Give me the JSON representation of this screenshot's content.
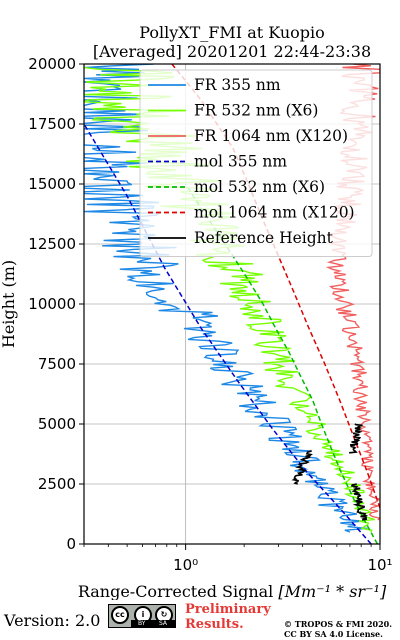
{
  "chart_data": {
    "type": "line",
    "title_lines": [
      "PollyXT_FMI at Kuopio",
      "[Averaged] 20201201 22:44-23:38"
    ],
    "xlabel_prefix": "Range-Corrected Signal ",
    "xlabel_unit": "[Mm⁻¹ * sr⁻¹]",
    "ylabel": "Height (m)",
    "xscale": "log",
    "xlim": [
      0.3,
      10
    ],
    "ylim": [
      0,
      20000
    ],
    "yticks": [
      0,
      2500,
      5000,
      7500,
      10000,
      12500,
      15000,
      17500,
      20000
    ],
    "xticks": [
      {
        "value": 1,
        "label": "10⁰"
      },
      {
        "value": 10,
        "label": "10¹"
      }
    ],
    "grid": true,
    "legend_position": "top-right",
    "legend": [
      {
        "label": "FR 355 nm",
        "color": "#1e88e5",
        "style": "solid"
      },
      {
        "label": "FR 532 nm (X6)",
        "color": "#76ff03",
        "style": "solid"
      },
      {
        "label": "FR 1064 nm (X120)",
        "color": "#f06060",
        "style": "solid"
      },
      {
        "label": "mol 355 nm",
        "color": "#0000cc",
        "style": "dashed"
      },
      {
        "label": "mol 532 nm (X6)",
        "color": "#00bb00",
        "style": "dashed"
      },
      {
        "label": "mol 1064 nm (X120)",
        "color": "#dd0000",
        "style": "dashed"
      },
      {
        "label": "Reference Height",
        "color": "#000000",
        "style": "solid"
      }
    ],
    "series": [
      {
        "kind": "molecular",
        "color": "#0000cc",
        "dashed": true,
        "x": [
          9.0,
          6.2,
          4.2,
          2.8,
          1.85,
          1.2,
          0.78,
          0.5,
          0.3
        ],
        "y": [
          0,
          1500,
          3000,
          4800,
          6800,
          9000,
          11500,
          14500,
          17500
        ]
      },
      {
        "kind": "molecular",
        "color": "#00bb00",
        "dashed": true,
        "x": [
          9.7,
          8.3,
          7.2,
          6.3,
          5.6,
          5.0,
          4.5,
          3.9,
          3.4,
          2.9,
          2.5,
          2.1,
          1.75,
          1.45,
          1.2,
          1.0
        ],
        "y": [
          0,
          1000,
          2000,
          3000,
          4000,
          5000,
          6000,
          7000,
          8000,
          9000,
          10000,
          11000,
          12000,
          13000,
          14000,
          15000
        ]
      },
      {
        "kind": "molecular",
        "color": "#dd0000",
        "dashed": true,
        "x": [
          10.0,
          8.6,
          7.3,
          6.2,
          5.2,
          4.3,
          3.6,
          3.0,
          2.5,
          2.1,
          1.75,
          1.45,
          1.2,
          1.0,
          0.85
        ],
        "y": [
          1500,
          3000,
          4500,
          6000,
          7500,
          9000,
          10500,
          12000,
          13500,
          15000,
          16500,
          17500,
          18500,
          19300,
          20000
        ]
      },
      {
        "kind": "measured",
        "name_ref": "FR 355 nm",
        "color": "#1e88e5",
        "noise": 0.2,
        "noise_top": 0.9,
        "seed": 3,
        "x": [
          7.5,
          6.0,
          4.5,
          3.0,
          2.0,
          1.3,
          0.85,
          0.55,
          0.38,
          0.3
        ],
        "y": [
          500,
          1500,
          3000,
          4800,
          6500,
          8500,
          10500,
          12500,
          15000,
          20000
        ]
      },
      {
        "kind": "measured",
        "name_ref": "FR 532 nm (X6)",
        "color": "#76ff03",
        "noise": 0.12,
        "noise_top": 0.8,
        "seed": 7,
        "x": [
          9.0,
          8.2,
          6.5,
          5.0,
          3.8,
          3.0,
          2.7,
          2.2,
          1.6,
          1.1,
          0.7,
          0.4
        ],
        "y": [
          500,
          1500,
          3000,
          4500,
          6000,
          7500,
          9000,
          10500,
          12000,
          14000,
          17000,
          20000
        ]
      },
      {
        "kind": "measured",
        "name_ref": "FR 1064 nm (X120)",
        "color": "#f06060",
        "noise": 0.08,
        "noise_top": 0.25,
        "seed": 11,
        "x": [
          9.5,
          8.8,
          8.3,
          7.8,
          7.3,
          6.8,
          6.3,
          5.9,
          6.2,
          6.8,
          7.2,
          7.6,
          7.9,
          8.0
        ],
        "y": [
          1000,
          3000,
          5000,
          7000,
          8500,
          9500,
          10500,
          11500,
          12500,
          14000,
          15500,
          17000,
          18500,
          20000
        ]
      },
      {
        "kind": "reference",
        "name_ref": "Reference Height",
        "color": "#000000",
        "noise": 0.05,
        "noise_top": 0.05,
        "seed": 19,
        "x": [
          3.6,
          4.4
        ],
        "y": [
          2500,
          3900
        ]
      },
      {
        "kind": "reference",
        "name_ref": "Reference Height",
        "color": "#000000",
        "noise": 0.05,
        "noise_top": 0.05,
        "seed": 23,
        "x": [
          7.2,
          7.8
        ],
        "y": [
          3800,
          5000
        ]
      },
      {
        "kind": "reference",
        "name_ref": "Reference Height",
        "color": "#000000",
        "noise": 0.05,
        "noise_top": 0.05,
        "seed": 29,
        "x": [
          8.2,
          7.5
        ],
        "y": [
          1000,
          2500
        ]
      }
    ]
  },
  "footer": {
    "version": "Version: 2.0",
    "cc_label": "cc",
    "cc_by": "BY",
    "cc_sa": "SA",
    "cc_by_glyph": "i",
    "cc_sa_glyph": "↻",
    "preliminary_line1": "Preliminary",
    "preliminary_line2": "Results.",
    "copyright_line1": "© TROPOS & FMI 2020.",
    "copyright_line2": "CC BY SA 4.0 License."
  }
}
